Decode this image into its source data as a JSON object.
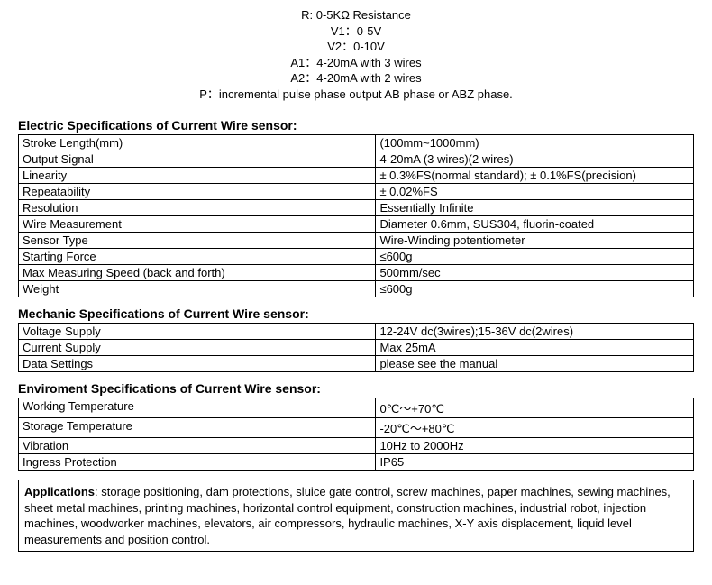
{
  "legend": {
    "r": "R: 0-5KΩ Resistance",
    "v1": "V1：0-5V",
    "v2": "V2：0-10V",
    "a1": "A1：4-20mA with 3 wires",
    "a2": "A2：4-20mA with 2 wires",
    "p": "P：incremental pulse phase output AB phase or ABZ phase."
  },
  "electric": {
    "heading": "Electric Specifications of Current Wire sensor:",
    "rows": {
      "stroke_l": "Stroke Length(mm)",
      "stroke_v": "(100mm~1000mm)",
      "output_l": "Output Signal",
      "output_v": "4-20mA (3 wires)(2 wires)",
      "linearity_l": "Linearity",
      "linearity_v": "± 0.3%FS(normal standard);  ± 0.1%FS(precision)",
      "repeat_l": "Repeatability",
      "repeat_v": "± 0.02%FS",
      "resolution_l": "Resolution",
      "resolution_v": "Essentially Infinite",
      "wire_l": "Wire Measurement",
      "wire_v": "Diameter 0.6mm, SUS304, fluorin-coated",
      "sensor_l": "Sensor Type",
      "sensor_v": "Wire-Winding potentiometer",
      "force_l": "Starting Force",
      "force_v": "≤600g",
      "speed_l": "Max Measuring Speed (back and forth)",
      "speed_v": "500mm/sec",
      "weight_l": "Weight",
      "weight_v": "≤600g"
    }
  },
  "mechanic": {
    "heading": "Mechanic Specifications of Current Wire sensor:",
    "rows": {
      "volt_l": "Voltage Supply",
      "volt_v": "12-24V dc(3wires);15-36V dc(2wires)",
      "curr_l": "Current Supply",
      "curr_v": "Max 25mA",
      "data_l": "Data Settings",
      "data_v": "please see the manual"
    }
  },
  "environment": {
    "heading": "Enviroment Specifications of Current Wire sensor:",
    "rows": {
      "work_l": "Working Temperature",
      "work_v": "0℃～+70℃",
      "storage_l": "Storage Temperature",
      "storage_v": "-20℃～+80℃",
      "vib_l": "Vibration",
      "vib_v": "10Hz to 2000Hz",
      "ip_l": "Ingress Protection",
      "ip_v": "IP65"
    }
  },
  "applications": {
    "title": "Applications",
    "text": ": storage positioning,  dam protections, sluice gate control, screw machines,  paper machines, sewing machines, sheet metal machines, printing machines, horizontal control equipment, construction machines, industrial robot, injection machines, woodworker machines, elevators, air compressors, hydraulic machines, X-Y axis displacement, liquid level measurements and position control."
  }
}
